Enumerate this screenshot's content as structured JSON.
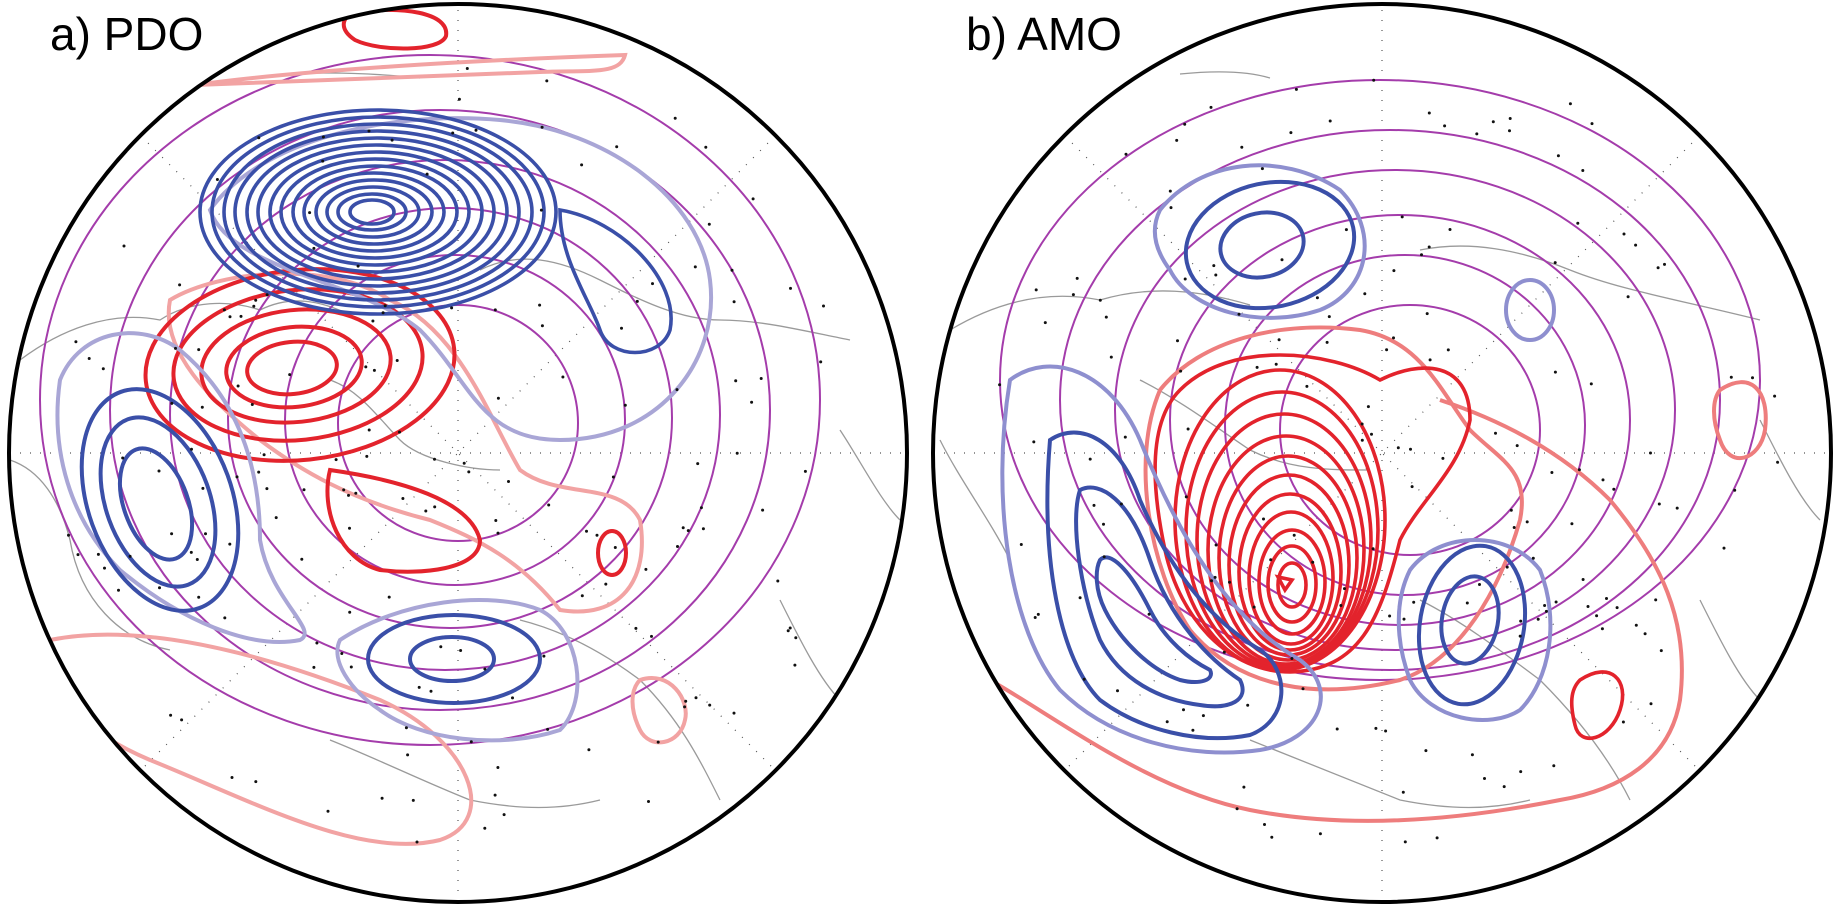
{
  "panels": [
    {
      "id": "pdo",
      "label": "a) PDO",
      "colors": {
        "strong_negative": "#3a4fa8",
        "weak_negative": "#a9a6d6",
        "strong_positive": "#e3232c",
        "weak_positive": "#f2a3a3",
        "background_field": "#a43cab",
        "coast": "#9a9a9a"
      },
      "features": [
        {
          "name": "pacific-negative-center",
          "sign": "negative",
          "levels": 16,
          "icon": "low-pressure-icon"
        },
        {
          "name": "alaska-positive-center",
          "sign": "positive",
          "levels": 5,
          "icon": "high-pressure-icon"
        },
        {
          "name": "west-pacific-negative-center",
          "sign": "negative",
          "levels": 3,
          "icon": "low-pressure-icon"
        },
        {
          "name": "europe-negative-center",
          "sign": "negative",
          "levels": 3,
          "icon": "low-pressure-icon"
        }
      ]
    },
    {
      "id": "amo",
      "label": "b) AMO",
      "colors": {
        "strong_negative": "#3a4fa8",
        "weak_negative": "#8e8fcf",
        "strong_positive": "#e3232c",
        "weak_positive": "#ee7d7d",
        "background_field": "#a43cab",
        "coast": "#9a9a9a"
      },
      "features": [
        {
          "name": "north-atlantic-positive-center",
          "sign": "positive",
          "levels": 15,
          "icon": "high-pressure-icon"
        },
        {
          "name": "pacific-negative-center",
          "sign": "negative",
          "levels": 3,
          "icon": "low-pressure-icon"
        },
        {
          "name": "west-negative-center",
          "sign": "negative",
          "levels": 4,
          "icon": "low-pressure-icon"
        },
        {
          "name": "europe-negative-center",
          "sign": "negative",
          "levels": 3,
          "icon": "low-pressure-icon"
        }
      ]
    }
  ]
}
